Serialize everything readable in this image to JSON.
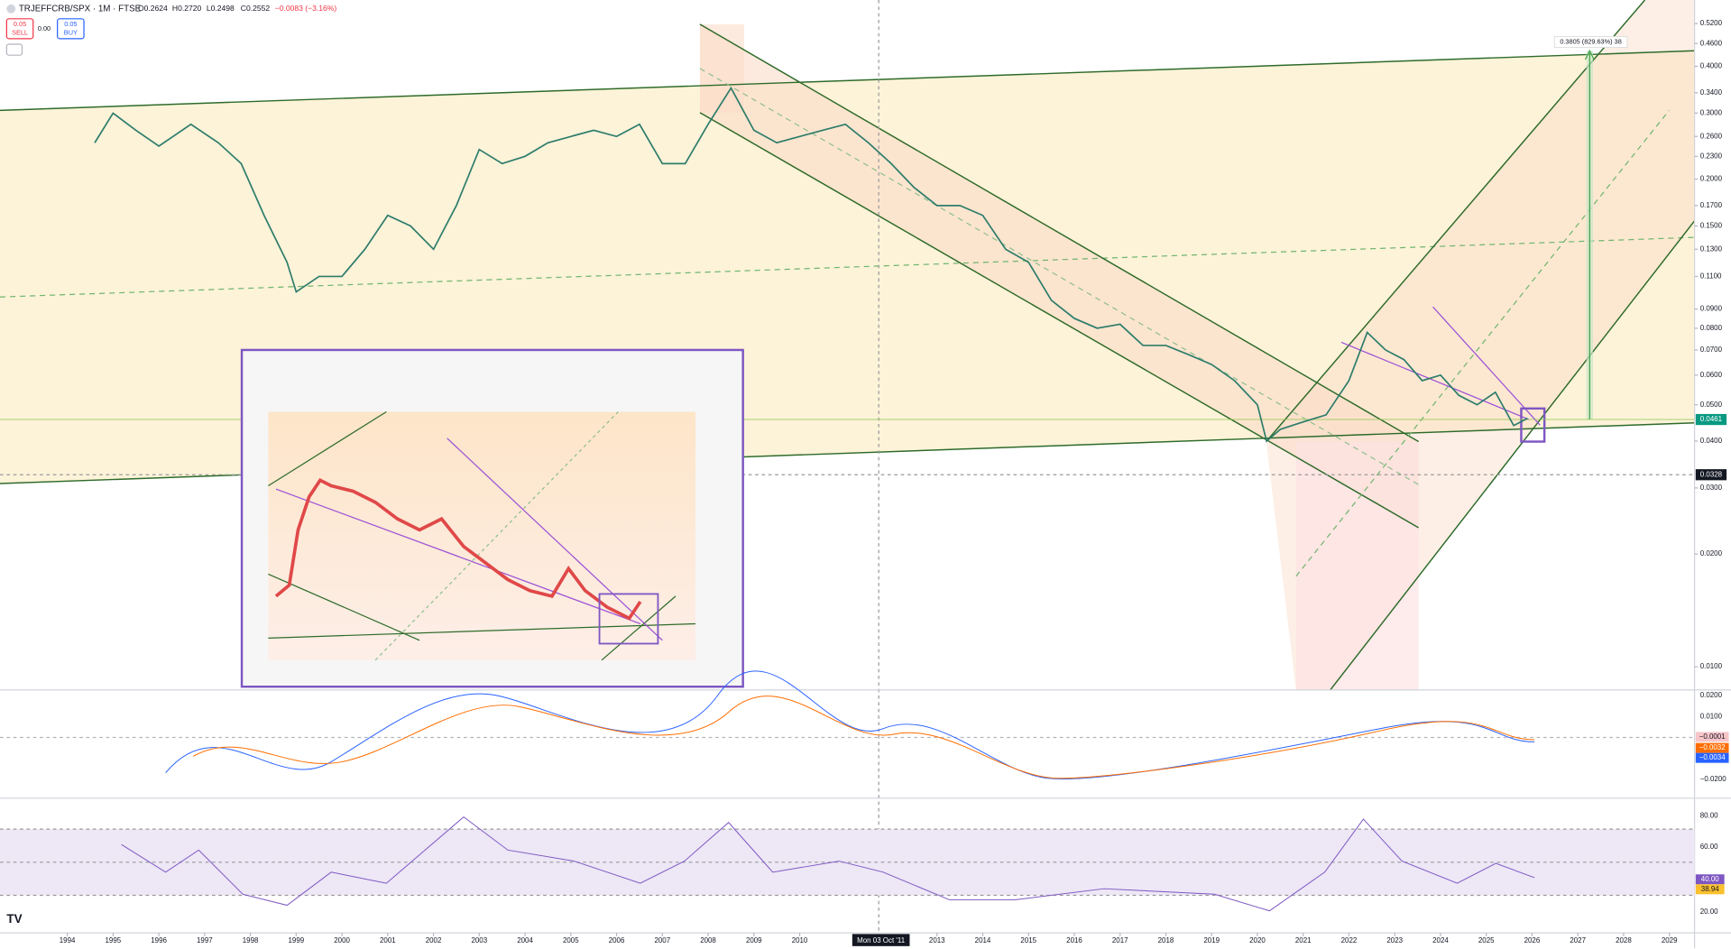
{
  "header": {
    "symbol": "TRJEFFCRB/SPX · 1M · FTSE",
    "open": "O0.2624",
    "high": "H0.2720",
    "low": "L0.2498",
    "close": "C0.2552",
    "change": "−0.0083 (−3.16%)"
  },
  "trade": {
    "sell_price": "0.05",
    "sell": "SELL",
    "spread": "0.00",
    "buy_price": "0.05",
    "buy": "BUY"
  },
  "chart_data": {
    "type": "line",
    "log_scale": true,
    "color": "#2e7d6b",
    "x": [
      1994.6,
      1995.0,
      1995.5,
      1996.0,
      1996.7,
      1997.3,
      1997.8,
      1998.3,
      1998.8,
      1999.0,
      1999.5,
      2000.0,
      2000.5,
      2001.0,
      2001.5,
      2002.0,
      2002.5,
      2003.0,
      2003.5,
      2004.0,
      2004.5,
      2005.0,
      2005.5,
      2006.0,
      2006.5,
      2007.0,
      2007.5,
      2008.0,
      2008.5,
      2009.0,
      2009.5,
      2010.0,
      2010.5,
      2011.0,
      2011.5,
      2012.0,
      2012.5,
      2013.0,
      2013.5,
      2014.0,
      2014.5,
      2015.0,
      2015.5,
      2016.0,
      2016.5,
      2017.0,
      2017.5,
      2018.0,
      2018.5,
      2019.0,
      2019.5,
      2020.0,
      2020.2,
      2020.5,
      2021.0,
      2021.5,
      2022.0,
      2022.4,
      2022.8,
      2023.2,
      2023.6,
      2024.0,
      2024.4,
      2024.8,
      2025.2,
      2025.6,
      2025.9
    ],
    "values": [
      0.25,
      0.3,
      0.27,
      0.245,
      0.28,
      0.25,
      0.22,
      0.16,
      0.12,
      0.1,
      0.11,
      0.11,
      0.13,
      0.16,
      0.15,
      0.13,
      0.17,
      0.24,
      0.22,
      0.23,
      0.25,
      0.26,
      0.27,
      0.26,
      0.28,
      0.22,
      0.22,
      0.28,
      0.35,
      0.27,
      0.25,
      0.26,
      0.27,
      0.28,
      0.25,
      0.22,
      0.19,
      0.17,
      0.17,
      0.16,
      0.13,
      0.12,
      0.095,
      0.085,
      0.08,
      0.082,
      0.072,
      0.072,
      0.068,
      0.064,
      0.058,
      0.05,
      0.04,
      0.043,
      0.045,
      0.047,
      0.058,
      0.078,
      0.07,
      0.066,
      0.058,
      0.06,
      0.053,
      0.05,
      0.054,
      0.044,
      0.046
    ],
    "xlim": [
      1992.53,
      2029.55
    ],
    "ylim": [
      0.00867,
      0.601
    ],
    "xticks": [
      1994,
      1995,
      1996,
      1997,
      1998,
      1999,
      2000,
      2001,
      2002,
      2003,
      2004,
      2005,
      2006,
      2007,
      2008,
      2009,
      2010,
      2013,
      2014,
      2015,
      2016,
      2017,
      2018,
      2019,
      2020,
      2021,
      2022,
      2023,
      2024,
      2025,
      2026,
      2027,
      2028,
      2029
    ],
    "yticks": [
      {
        "value": 0.52,
        "label": "0.5200"
      },
      {
        "value": 0.46,
        "label": "0.4600"
      },
      {
        "value": 0.4,
        "label": "0.4000"
      },
      {
        "value": 0.34,
        "label": "0.3400"
      },
      {
        "value": 0.3,
        "label": "0.3000"
      },
      {
        "value": 0.26,
        "label": "0.2600"
      },
      {
        "value": 0.23,
        "label": "0.2300"
      },
      {
        "value": 0.2,
        "label": "0.2000"
      },
      {
        "value": 0.17,
        "label": "0.1700"
      },
      {
        "value": 0.15,
        "label": "0.1500"
      },
      {
        "value": 0.13,
        "label": "0.1300"
      },
      {
        "value": 0.11,
        "label": "0.1100"
      },
      {
        "value": 0.09,
        "label": "0.0900"
      },
      {
        "value": 0.08,
        "label": "0.0800"
      },
      {
        "value": 0.07,
        "label": "0.0700"
      },
      {
        "value": 0.06,
        "label": "0.0600"
      },
      {
        "value": 0.05,
        "label": "0.0500"
      },
      {
        "value": 0.04,
        "label": "0.0400"
      },
      {
        "value": 0.03,
        "label": "0.0300"
      },
      {
        "value": 0.02,
        "label": "0.0200"
      },
      {
        "value": 0.01,
        "label": "0.0100"
      }
    ]
  },
  "annotations": {
    "measure": "0.3805 (829.63%) 38",
    "last_price": "0.0461",
    "crosshair_price": "0.0328",
    "crosshair_date": "Mon 03 Oct '11"
  },
  "macd": {
    "axis": [
      "0.0200",
      "0.0100",
      "−0.0200"
    ],
    "tags": [
      "−0.0001",
      "−0.0032",
      "−0.0034"
    ]
  },
  "rsi": {
    "axis": [
      "80.00",
      "60.00",
      "20.00"
    ],
    "tags": [
      "40.00",
      "38.94"
    ]
  }
}
